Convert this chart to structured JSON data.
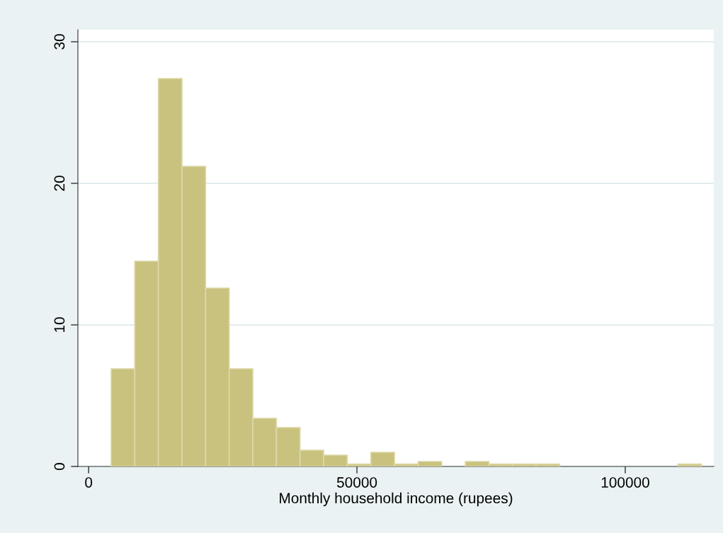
{
  "chart_data": {
    "type": "histogram",
    "xlabel": "Monthly household income (rupees)",
    "bins": [
      4200,
      8600,
      13000,
      17400,
      21800,
      26200,
      30600,
      35000,
      39400,
      43800,
      48200,
      52600,
      57000,
      61400,
      65800,
      70200,
      74600,
      79000,
      83400,
      87800,
      92200,
      96600,
      101000,
      105400,
      109800,
      114200
    ],
    "values": [
      6.9,
      14.5,
      27.4,
      21.2,
      12.6,
      6.9,
      3.4,
      2.75,
      1.15,
      0.8,
      0.17,
      1.0,
      0.17,
      0.35,
      0,
      0.35,
      0.17,
      0.17,
      0.17,
      0,
      0,
      0,
      0,
      0,
      0.17
    ],
    "color": "#c9c27f",
    "xlim": [
      -2000,
      116500
    ],
    "xticks": [
      0,
      50000,
      100000
    ],
    "ylim": [
      0,
      30.85
    ],
    "yticks": [
      0,
      10,
      20,
      30
    ],
    "grid": "y"
  }
}
